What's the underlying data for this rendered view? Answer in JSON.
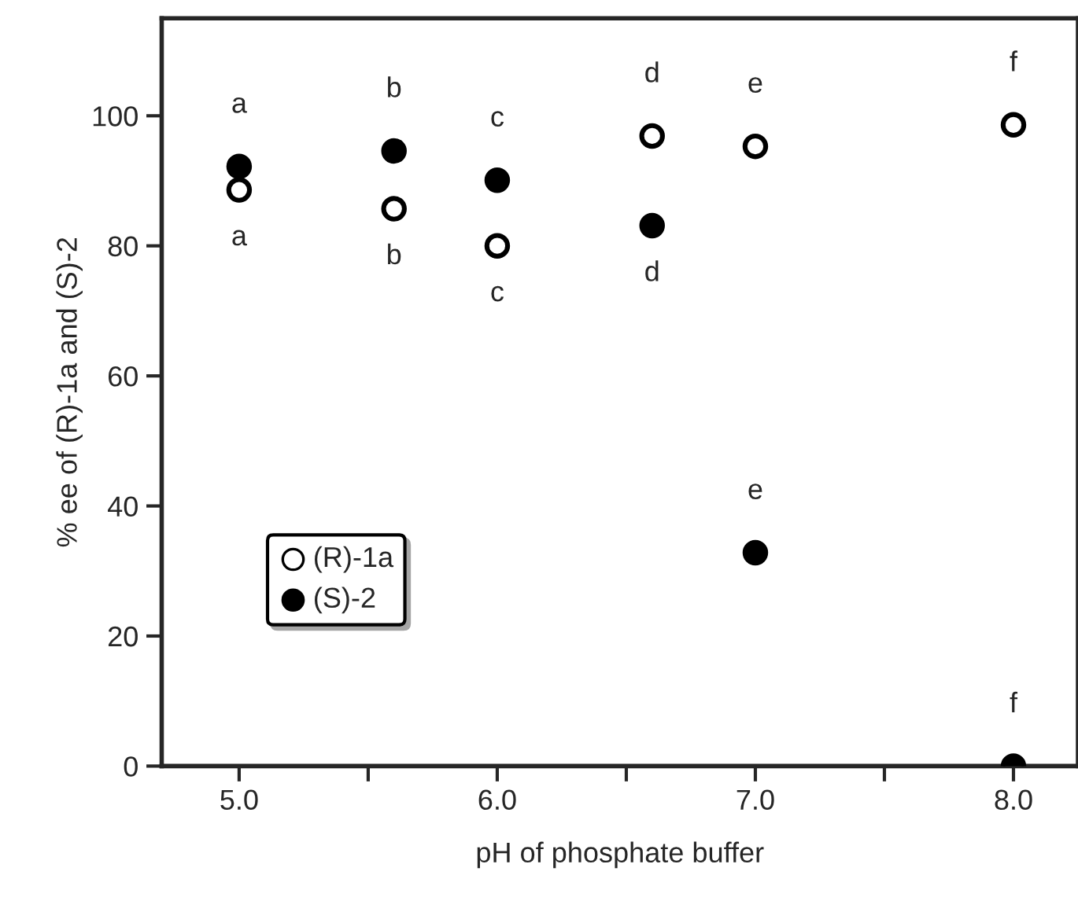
{
  "chart_data": {
    "type": "scatter",
    "xlabel": "pH of phosphate buffer",
    "ylabel": "% ee of (R)-1a and (S)-2",
    "x": [
      5.0,
      5.6,
      6.0,
      6.6,
      7.0,
      8.0
    ],
    "series": [
      {
        "name": "(R)-1a",
        "color": "#ffffff",
        "values": [
          88.6,
          85.7,
          80,
          96.9,
          95.3,
          98.6
        ]
      },
      {
        "name": "(S)-2",
        "color": "#000000",
        "values": [
          92.2,
          94.6,
          90.1,
          83.1,
          32.8,
          0
        ]
      }
    ],
    "xlim": [
      4.7,
      8.25
    ],
    "ylim": [
      0,
      115
    ],
    "xticks": [
      {
        "value": 5.0,
        "label": "5.0"
      },
      {
        "value": 5.5,
        "label": null
      },
      {
        "value": 6.0,
        "label": "6.0"
      },
      {
        "value": 6.5,
        "label": null
      },
      {
        "value": 7.0,
        "label": "7.0"
      },
      {
        "value": 7.5,
        "label": null
      },
      {
        "value": 8.0,
        "label": "8.0"
      }
    ],
    "yticks": [
      0,
      20,
      40,
      60,
      80,
      100
    ],
    "annotations": [
      {
        "text": "a",
        "x": 5.0,
        "y": 92.2
      },
      {
        "text": "a",
        "x": 5.0,
        "y": 88.6
      },
      {
        "text": "b",
        "x": 5.6,
        "y": 94.6
      },
      {
        "text": "b",
        "x": 5.6,
        "y": 85.7
      },
      {
        "text": "c",
        "x": 6.0,
        "y": 90.1
      },
      {
        "text": "c",
        "x": 6.0,
        "y": 80
      },
      {
        "text": "d",
        "x": 6.6,
        "y": 96.9
      },
      {
        "text": "d",
        "x": 6.6,
        "y": 83.1
      },
      {
        "text": "e",
        "x": 7.0,
        "y": 95.3
      },
      {
        "text": "e",
        "x": 7.0,
        "y": 32.8
      },
      {
        "text": "f",
        "x": 8.0,
        "y": 98.6
      },
      {
        "text": "f",
        "x": 8.0,
        "y": 0
      }
    ],
    "marker": "circle",
    "grid": false,
    "legend": "bottom left"
  }
}
